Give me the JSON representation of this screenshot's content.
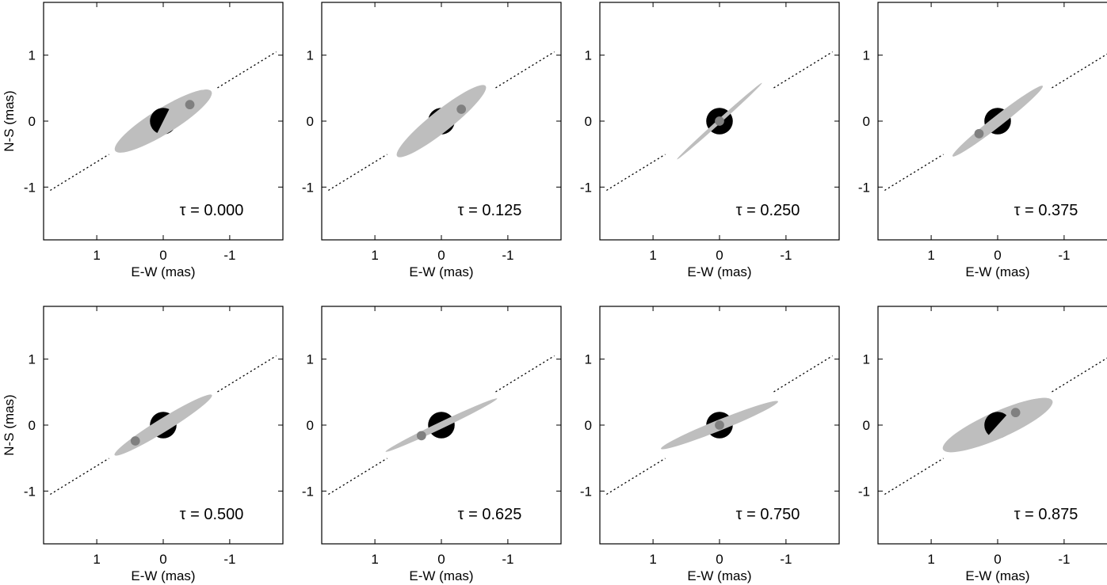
{
  "figure": {
    "title": "",
    "ring_color": "#bebebe",
    "star_color": "#000000",
    "companion_color": "#808080",
    "path_color": "#000000"
  },
  "chart_data": [
    {
      "type": "scatter",
      "tau_label": "τ = 0.000",
      "xlabel": "E-W (mas)",
      "ylabel": "N-S (mas)",
      "xlim": [
        1.8,
        -1.8
      ],
      "ylim": [
        -1.8,
        1.8
      ],
      "xticks": [
        1,
        0,
        -1
      ],
      "yticks": [
        1,
        0,
        -1
      ],
      "orbit_line": {
        "x": [
          1.7,
          -1.7
        ],
        "y": [
          -1.05,
          1.05
        ]
      },
      "disk": {
        "x": 0,
        "y": 0,
        "semi_major": 0.85,
        "semi_minor": 0.19,
        "angle_deg": 31.7
      },
      "star": {
        "x": 0,
        "y": 0,
        "radius": 0.2
      },
      "companion": {
        "x": -0.4,
        "y": 0.25,
        "radius": 0.07
      },
      "star_occulted_by_disk": true
    },
    {
      "type": "scatter",
      "tau_label": "τ = 0.125",
      "xlabel": "E-W (mas)",
      "ylabel": "",
      "xlim": [
        1.8,
        -1.8
      ],
      "ylim": [
        -1.8,
        1.8
      ],
      "xticks": [
        1,
        0,
        -1
      ],
      "yticks": [
        1,
        0,
        -1
      ],
      "orbit_line": {
        "x": [
          1.7,
          -1.7
        ],
        "y": [
          -1.05,
          1.05
        ]
      },
      "disk": {
        "x": 0,
        "y": 0,
        "semi_major": 0.85,
        "semi_minor": 0.16,
        "angle_deg": 38.5
      },
      "star": {
        "x": 0,
        "y": 0,
        "radius": 0.2
      },
      "companion": {
        "x": -0.3,
        "y": 0.18,
        "radius": 0.07
      },
      "star_occulted_by_disk": false
    },
    {
      "type": "scatter",
      "tau_label": "τ = 0.250",
      "xlabel": "E-W (mas)",
      "ylabel": "",
      "xlim": [
        1.8,
        -1.8
      ],
      "ylim": [
        -1.8,
        1.8
      ],
      "xticks": [
        1,
        0,
        -1
      ],
      "yticks": [
        1,
        0,
        -1
      ],
      "orbit_line": {
        "x": [
          1.7,
          -1.7
        ],
        "y": [
          -1.05,
          1.05
        ]
      },
      "disk": {
        "x": 0,
        "y": 0,
        "semi_major": 0.86,
        "semi_minor": 0.03,
        "angle_deg": 42.0
      },
      "star": {
        "x": 0,
        "y": 0,
        "radius": 0.2
      },
      "companion": {
        "x": 0,
        "y": 0,
        "radius": 0.07
      },
      "star_occulted_by_disk": false
    },
    {
      "type": "scatter",
      "tau_label": "τ = 0.375",
      "xlabel": "E-W (mas)",
      "ylabel": "",
      "xlim": [
        1.8,
        -1.8
      ],
      "ylim": [
        -1.8,
        1.8
      ],
      "xticks": [
        1,
        0,
        -1
      ],
      "yticks": [
        1,
        0,
        -1
      ],
      "orbit_line": {
        "x": [
          1.7,
          -1.7
        ],
        "y": [
          -1.05,
          1.05
        ]
      },
      "disk": {
        "x": 0,
        "y": 0,
        "semi_major": 0.86,
        "semi_minor": 0.08,
        "angle_deg": 38.0
      },
      "star": {
        "x": 0,
        "y": 0,
        "radius": 0.2
      },
      "companion": {
        "x": 0.28,
        "y": -0.19,
        "radius": 0.07
      },
      "star_occulted_by_disk": false
    },
    {
      "type": "scatter",
      "tau_label": "τ = 0.500",
      "xlabel": "E-W (mas)",
      "ylabel": "N-S (mas)",
      "xlim": [
        1.8,
        -1.8
      ],
      "ylim": [
        -1.8,
        1.8
      ],
      "xticks": [
        1,
        0,
        -1
      ],
      "yticks": [
        1,
        0,
        -1
      ],
      "orbit_line": {
        "x": [
          1.7,
          -1.7
        ],
        "y": [
          -1.05,
          1.05
        ]
      },
      "disk": {
        "x": 0,
        "y": 0,
        "semi_major": 0.86,
        "semi_minor": 0.1,
        "angle_deg": 31.7
      },
      "star": {
        "x": 0,
        "y": 0,
        "radius": 0.2
      },
      "companion": {
        "x": 0.42,
        "y": -0.24,
        "radius": 0.07
      },
      "star_occulted_by_disk": false
    },
    {
      "type": "scatter",
      "tau_label": "τ = 0.625",
      "xlabel": "E-W (mas)",
      "ylabel": "",
      "xlim": [
        1.8,
        -1.8
      ],
      "ylim": [
        -1.8,
        1.8
      ],
      "xticks": [
        1,
        0,
        -1
      ],
      "yticks": [
        1,
        0,
        -1
      ],
      "orbit_line": {
        "x": [
          1.7,
          -1.7
        ],
        "y": [
          -1.05,
          1.05
        ]
      },
      "disk": {
        "x": 0,
        "y": 0,
        "semi_major": 0.93,
        "semi_minor": 0.05,
        "angle_deg": 25.5
      },
      "star": {
        "x": 0,
        "y": 0,
        "radius": 0.2
      },
      "companion": {
        "x": 0.3,
        "y": -0.16,
        "radius": 0.07
      },
      "star_occulted_by_disk": false
    },
    {
      "type": "scatter",
      "tau_label": "τ = 0.750",
      "xlabel": "E-W (mas)",
      "ylabel": "",
      "xlim": [
        1.8,
        -1.8
      ],
      "ylim": [
        -1.8,
        1.8
      ],
      "xticks": [
        1,
        0,
        -1
      ],
      "yticks": [
        1,
        0,
        -1
      ],
      "orbit_line": {
        "x": [
          1.7,
          -1.7
        ],
        "y": [
          -1.05,
          1.05
        ]
      },
      "disk": {
        "x": 0,
        "y": 0,
        "semi_major": 0.95,
        "semi_minor": 0.08,
        "angle_deg": 22.0
      },
      "star": {
        "x": 0,
        "y": 0,
        "radius": 0.2
      },
      "companion": {
        "x": 0,
        "y": 0,
        "radius": 0.07
      },
      "star_occulted_by_disk": false
    },
    {
      "type": "scatter",
      "tau_label": "τ = 0.875",
      "xlabel": "E-W (mas)",
      "ylabel": "",
      "xlim": [
        1.8,
        -1.8
      ],
      "ylim": [
        -1.8,
        1.8
      ],
      "xticks": [
        1,
        0,
        -1
      ],
      "yticks": [
        1,
        0,
        -1
      ],
      "orbit_line": {
        "x": [
          1.7,
          -1.7
        ],
        "y": [
          -1.05,
          1.05
        ]
      },
      "disk": {
        "x": 0,
        "y": 0,
        "semi_major": 0.9,
        "semi_minor": 0.2,
        "angle_deg": 24.0
      },
      "star": {
        "x": 0,
        "y": 0,
        "radius": 0.2
      },
      "companion": {
        "x": -0.27,
        "y": 0.19,
        "radius": 0.07
      },
      "star_occulted_by_disk": true
    }
  ]
}
